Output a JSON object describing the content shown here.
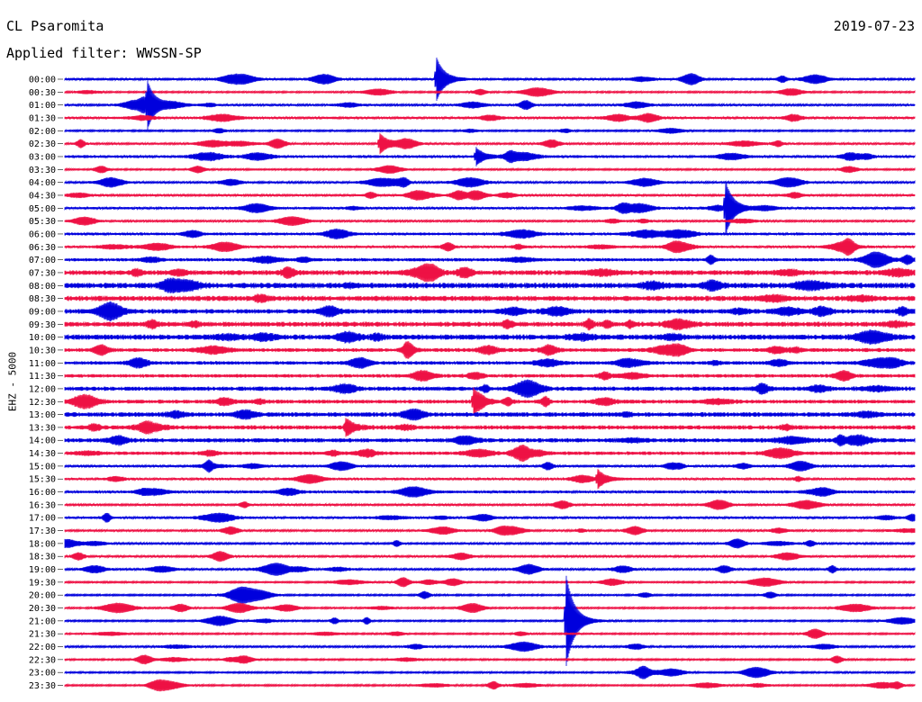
{
  "header": {
    "station": "CL Psaromita",
    "date": "2019-07-23",
    "filter_label": "Applied filter: WWSSN-SP",
    "channel": "EHZ - 5000"
  },
  "colors": {
    "trace_even": "#0000dd",
    "trace_odd": "#ee1144",
    "background": "#ffffff"
  },
  "chart_data": {
    "type": "helicorder",
    "title": "CL Psaromita",
    "date": "2019-07-23",
    "filter": "WWSSN-SP",
    "ylabel": "EHZ - 5000",
    "rows": [
      "00:00",
      "00:30",
      "01:00",
      "01:30",
      "02:00",
      "02:30",
      "03:00",
      "03:30",
      "04:00",
      "04:30",
      "05:00",
      "05:30",
      "06:00",
      "06:30",
      "07:00",
      "07:30",
      "08:00",
      "08:30",
      "09:00",
      "09:30",
      "10:00",
      "10:30",
      "11:00",
      "11:30",
      "12:00",
      "12:30",
      "13:00",
      "13:30",
      "14:00",
      "14:30",
      "15:00",
      "15:30",
      "16:00",
      "16:30",
      "17:00",
      "17:30",
      "18:00",
      "18:30",
      "19:00",
      "19:30",
      "20:00",
      "20:30",
      "21:00",
      "21:30",
      "22:00",
      "22:30",
      "23:00",
      "23:30"
    ],
    "row_minutes": 30,
    "noise_level": [
      0.6,
      0.5,
      0.6,
      0.7,
      0.5,
      0.6,
      0.8,
      0.5,
      0.6,
      0.6,
      0.7,
      0.6,
      0.8,
      0.7,
      0.9,
      1.4,
      1.6,
      1.5,
      1.3,
      1.4,
      1.5,
      1.1,
      1.0,
      1.0,
      1.2,
      1.1,
      1.3,
      1.2,
      1.2,
      1.0,
      0.6,
      0.7,
      0.8,
      0.6,
      0.7,
      0.6,
      0.6,
      0.6,
      0.6,
      0.5,
      0.5,
      0.5,
      0.5,
      0.5,
      0.6,
      0.5,
      0.5,
      0.5
    ],
    "events": [
      {
        "row": 0,
        "minute": 13.1,
        "amplitude": 2.5
      },
      {
        "row": 2,
        "minute": 2.9,
        "amplitude": 2.3
      },
      {
        "row": 5,
        "minute": 11.1,
        "amplitude": 1.2
      },
      {
        "row": 6,
        "minute": 14.5,
        "amplitude": 1.0
      },
      {
        "row": 10,
        "minute": 23.3,
        "amplitude": 3.0
      },
      {
        "row": 25,
        "minute": 14.4,
        "amplitude": 1.5
      },
      {
        "row": 27,
        "minute": 9.9,
        "amplitude": 1.0
      },
      {
        "row": 31,
        "minute": 18.8,
        "amplitude": 1.0
      },
      {
        "row": 42,
        "minute": 17.7,
        "amplitude": 5.0
      }
    ]
  }
}
